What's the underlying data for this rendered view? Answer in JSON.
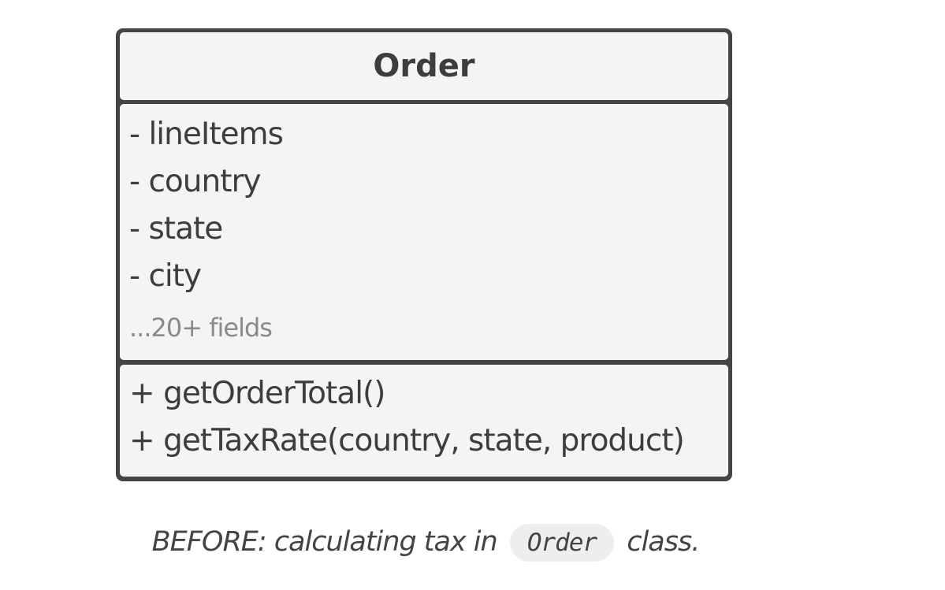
{
  "class_box": {
    "name": "Order",
    "fields": [
      "- lineItems",
      "- country",
      "- state",
      "- city"
    ],
    "more_fields": "...20+ fields",
    "methods": [
      "+ getOrderTotal()",
      "+ getTaxRate(country, state, product)"
    ]
  },
  "caption": {
    "prefix": "BEFORE: calculating tax in",
    "code": "Order",
    "suffix": "class."
  }
}
